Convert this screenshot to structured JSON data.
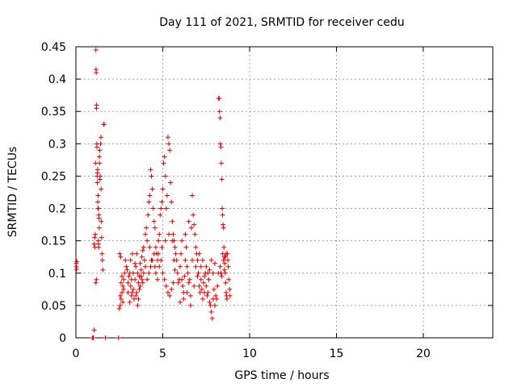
{
  "chart_data": {
    "type": "scatter",
    "title": "Day 111 of 2021, SRMTID for receiver cedu",
    "xlabel": "GPS time / hours",
    "ylabel": "SRMTID / TECUs",
    "xlim": [
      0,
      24
    ],
    "ylim": [
      0,
      0.45
    ],
    "grid": true,
    "marker": "+",
    "color": "#e00000",
    "x_ticks": [
      0,
      5,
      10,
      15,
      20
    ],
    "x_tick_labels": [
      "0",
      "5",
      "10",
      "15",
      "20"
    ],
    "y_ticks": [
      0,
      0.05,
      0.1,
      0.15,
      0.2,
      0.25,
      0.3,
      0.35,
      0.4,
      0.45
    ],
    "y_tick_labels": [
      "0",
      "0.05",
      "0.1",
      "0.15",
      "0.2",
      "0.25",
      "0.3",
      "0.35",
      "0.4",
      "0.45"
    ],
    "series": [
      {
        "name": "SRMTID",
        "points": [
          [
            0.02,
            0.115
          ],
          [
            0.03,
            0.11
          ],
          [
            0.05,
            0.118
          ],
          [
            0.04,
            0.106
          ],
          [
            0.95,
            0.0
          ],
          [
            1.0,
            0.0
          ],
          [
            1.05,
            0.012
          ],
          [
            1.7,
            0.0
          ],
          [
            2.45,
            0.0
          ],
          [
            1.05,
            0.145
          ],
          [
            1.08,
            0.155
          ],
          [
            1.1,
            0.14
          ],
          [
            1.12,
            0.16
          ],
          [
            1.13,
            0.27
          ],
          [
            1.15,
            0.445
          ],
          [
            1.16,
            0.415
          ],
          [
            1.17,
            0.41
          ],
          [
            1.18,
            0.355
          ],
          [
            1.19,
            0.36
          ],
          [
            1.2,
            0.3
          ],
          [
            1.21,
            0.295
          ],
          [
            1.22,
            0.25
          ],
          [
            1.23,
            0.24
          ],
          [
            1.24,
            0.255
          ],
          [
            1.25,
            0.26
          ],
          [
            1.26,
            0.21
          ],
          [
            1.27,
            0.2
          ],
          [
            1.28,
            0.22
          ],
          [
            1.29,
            0.15
          ],
          [
            1.3,
            0.145
          ],
          [
            1.31,
            0.14
          ],
          [
            1.32,
            0.19
          ],
          [
            1.33,
            0.185
          ],
          [
            1.34,
            0.17
          ],
          [
            1.35,
            0.28
          ],
          [
            1.36,
            0.27
          ],
          [
            1.37,
            0.29
          ],
          [
            1.38,
            0.245
          ],
          [
            1.4,
            0.25
          ],
          [
            1.42,
            0.3
          ],
          [
            1.44,
            0.31
          ],
          [
            1.46,
            0.18
          ],
          [
            1.48,
            0.155
          ],
          [
            1.5,
            0.13
          ],
          [
            1.52,
            0.12
          ],
          [
            1.55,
            0.105
          ],
          [
            1.6,
            0.33
          ],
          [
            1.62,
            0.33
          ],
          [
            1.15,
            0.085
          ],
          [
            1.18,
            0.09
          ],
          [
            1.3,
            0.2
          ],
          [
            1.45,
            0.23
          ],
          [
            2.5,
            0.045
          ],
          [
            2.55,
            0.05
          ],
          [
            2.6,
            0.06
          ],
          [
            2.65,
            0.07
          ],
          [
            2.7,
            0.08
          ],
          [
            2.75,
            0.09
          ],
          [
            2.8,
            0.1
          ],
          [
            2.85,
            0.12
          ],
          [
            2.55,
            0.065
          ],
          [
            2.6,
            0.085
          ],
          [
            2.65,
            0.095
          ],
          [
            2.7,
            0.055
          ],
          [
            2.75,
            0.075
          ],
          [
            2.52,
            0.13
          ],
          [
            2.58,
            0.125
          ],
          [
            2.9,
            0.11
          ],
          [
            2.95,
            0.105
          ],
          [
            3.0,
            0.085
          ],
          [
            3.05,
            0.095
          ],
          [
            3.1,
            0.1
          ],
          [
            3.15,
            0.12
          ],
          [
            3.2,
            0.065
          ],
          [
            3.25,
            0.07
          ],
          [
            3.3,
            0.075
          ],
          [
            3.35,
            0.06
          ],
          [
            3.4,
            0.09
          ],
          [
            3.45,
            0.11
          ],
          [
            3.5,
            0.13
          ],
          [
            3.55,
            0.1
          ],
          [
            3.6,
            0.085
          ],
          [
            3.65,
            0.095
          ],
          [
            3.7,
            0.115
          ],
          [
            3.75,
            0.105
          ],
          [
            3.8,
            0.125
          ],
          [
            3.85,
            0.135
          ],
          [
            3.9,
            0.14
          ],
          [
            3.95,
            0.12
          ],
          [
            4.0,
            0.11
          ],
          [
            3.1,
            0.055
          ],
          [
            3.2,
            0.09
          ],
          [
            3.3,
            0.1
          ],
          [
            3.5,
            0.07
          ],
          [
            3.6,
            0.06
          ],
          [
            3.7,
            0.08
          ],
          [
            3.8,
            0.09
          ],
          [
            3.9,
            0.1
          ],
          [
            3.0,
            0.07
          ],
          [
            3.4,
            0.115
          ],
          [
            3.25,
            0.13
          ],
          [
            3.15,
            0.08
          ],
          [
            3.45,
            0.065
          ],
          [
            3.55,
            0.05
          ],
          [
            3.65,
            0.075
          ],
          [
            3.75,
            0.095
          ],
          [
            3.85,
            0.085
          ],
          [
            4.0,
            0.16
          ],
          [
            4.05,
            0.17
          ],
          [
            4.1,
            0.15
          ],
          [
            4.15,
            0.19
          ],
          [
            4.2,
            0.21
          ],
          [
            4.25,
            0.22
          ],
          [
            4.3,
            0.26
          ],
          [
            4.35,
            0.25
          ],
          [
            4.4,
            0.23
          ],
          [
            4.45,
            0.2
          ],
          [
            4.5,
            0.18
          ],
          [
            4.55,
            0.17
          ],
          [
            4.6,
            0.14
          ],
          [
            4.65,
            0.13
          ],
          [
            4.7,
            0.12
          ],
          [
            4.75,
            0.15
          ],
          [
            4.8,
            0.16
          ],
          [
            4.85,
            0.19
          ],
          [
            4.9,
            0.2
          ],
          [
            4.95,
            0.21
          ],
          [
            5.0,
            0.23
          ],
          [
            5.05,
            0.27
          ],
          [
            5.1,
            0.28
          ],
          [
            5.15,
            0.25
          ],
          [
            5.2,
            0.2
          ],
          [
            5.25,
            0.22
          ],
          [
            5.3,
            0.31
          ],
          [
            5.35,
            0.3
          ],
          [
            5.4,
            0.29
          ],
          [
            5.45,
            0.24
          ],
          [
            5.5,
            0.21
          ],
          [
            5.55,
            0.18
          ],
          [
            5.6,
            0.16
          ],
          [
            5.65,
            0.15
          ],
          [
            5.7,
            0.14
          ],
          [
            5.75,
            0.13
          ],
          [
            4.1,
            0.09
          ],
          [
            4.2,
            0.1
          ],
          [
            4.3,
            0.11
          ],
          [
            4.4,
            0.12
          ],
          [
            4.5,
            0.13
          ],
          [
            4.6,
            0.1
          ],
          [
            4.7,
            0.09
          ],
          [
            4.8,
            0.11
          ],
          [
            4.9,
            0.12
          ],
          [
            5.0,
            0.1
          ],
          [
            5.1,
            0.09
          ],
          [
            5.2,
            0.08
          ],
          [
            5.3,
            0.07
          ],
          [
            5.4,
            0.065
          ],
          [
            5.5,
            0.075
          ],
          [
            5.6,
            0.085
          ],
          [
            4.25,
            0.14
          ],
          [
            4.35,
            0.12
          ],
          [
            4.55,
            0.11
          ],
          [
            4.75,
            0.13
          ],
          [
            4.95,
            0.14
          ],
          [
            5.15,
            0.15
          ],
          [
            5.35,
            0.16
          ],
          [
            5.55,
            0.15
          ],
          [
            5.65,
            0.12
          ],
          [
            5.7,
            0.105
          ],
          [
            5.8,
            0.12
          ],
          [
            5.85,
            0.1
          ],
          [
            5.9,
            0.085
          ],
          [
            5.95,
            0.09
          ],
          [
            6.0,
            0.11
          ],
          [
            6.05,
            0.13
          ],
          [
            6.1,
            0.09
          ],
          [
            6.15,
            0.08
          ],
          [
            6.2,
            0.07
          ],
          [
            6.25,
            0.095
          ],
          [
            6.3,
            0.12
          ],
          [
            6.35,
            0.14
          ],
          [
            6.4,
            0.11
          ],
          [
            6.45,
            0.1
          ],
          [
            6.5,
            0.085
          ],
          [
            6.55,
            0.09
          ],
          [
            6.6,
            0.065
          ],
          [
            6.65,
            0.17
          ],
          [
            6.7,
            0.22
          ],
          [
            6.75,
            0.19
          ],
          [
            6.8,
            0.175
          ],
          [
            6.85,
            0.16
          ],
          [
            6.9,
            0.14
          ],
          [
            6.95,
            0.13
          ],
          [
            7.0,
            0.12
          ],
          [
            7.05,
            0.1
          ],
          [
            7.1,
            0.08
          ],
          [
            7.15,
            0.07
          ],
          [
            7.2,
            0.09
          ],
          [
            7.25,
            0.075
          ],
          [
            7.3,
            0.06
          ],
          [
            7.35,
            0.085
          ],
          [
            7.4,
            0.095
          ],
          [
            7.45,
            0.1
          ],
          [
            7.5,
            0.08
          ],
          [
            7.55,
            0.065
          ],
          [
            7.6,
            0.07
          ],
          [
            7.65,
            0.09
          ],
          [
            7.7,
            0.055
          ],
          [
            7.75,
            0.05
          ],
          [
            7.8,
            0.04
          ],
          [
            7.85,
            0.03
          ],
          [
            7.9,
            0.06
          ],
          [
            7.95,
            0.075
          ],
          [
            8.0,
            0.05
          ],
          [
            8.05,
            0.065
          ],
          [
            6.0,
            0.055
          ],
          [
            6.2,
            0.06
          ],
          [
            6.4,
            0.07
          ],
          [
            6.6,
            0.05
          ],
          [
            6.8,
            0.08
          ],
          [
            7.0,
            0.095
          ],
          [
            7.2,
            0.11
          ],
          [
            7.4,
            0.07
          ],
          [
            7.6,
            0.1
          ],
          [
            7.8,
            0.12
          ],
          [
            6.1,
            0.15
          ],
          [
            6.3,
            0.16
          ],
          [
            6.5,
            0.18
          ],
          [
            6.7,
            0.12
          ],
          [
            6.9,
            0.11
          ],
          [
            7.1,
            0.13
          ],
          [
            7.3,
            0.12
          ],
          [
            7.5,
            0.11
          ],
          [
            7.7,
            0.105
          ],
          [
            7.9,
            0.1
          ],
          [
            8.0,
            0.115
          ],
          [
            8.1,
            0.06
          ],
          [
            8.15,
            0.08
          ],
          [
            8.2,
            0.1
          ],
          [
            8.22,
            0.37
          ],
          [
            8.25,
            0.37
          ],
          [
            8.27,
            0.35
          ],
          [
            8.3,
            0.34
          ],
          [
            8.32,
            0.3
          ],
          [
            8.35,
            0.295
          ],
          [
            8.37,
            0.27
          ],
          [
            8.4,
            0.245
          ],
          [
            8.42,
            0.2
          ],
          [
            8.45,
            0.19
          ],
          [
            8.47,
            0.175
          ],
          [
            8.5,
            0.17
          ],
          [
            8.52,
            0.14
          ],
          [
            8.55,
            0.125
          ],
          [
            8.57,
            0.115
          ],
          [
            8.6,
            0.1
          ],
          [
            8.62,
            0.085
          ],
          [
            8.65,
            0.07
          ],
          [
            8.67,
            0.065
          ],
          [
            8.7,
            0.06
          ],
          [
            8.72,
            0.13
          ],
          [
            8.75,
            0.12
          ],
          [
            8.77,
            0.11
          ],
          [
            8.8,
            0.09
          ],
          [
            8.85,
            0.075
          ],
          [
            8.87,
            0.065
          ],
          [
            8.3,
            0.11
          ],
          [
            8.35,
            0.1
          ],
          [
            8.4,
            0.095
          ],
          [
            8.45,
            0.13
          ],
          [
            8.5,
            0.12
          ],
          [
            8.55,
            0.105
          ],
          [
            8.6,
            0.125
          ],
          [
            8.65,
            0.13
          ]
        ]
      }
    ]
  }
}
